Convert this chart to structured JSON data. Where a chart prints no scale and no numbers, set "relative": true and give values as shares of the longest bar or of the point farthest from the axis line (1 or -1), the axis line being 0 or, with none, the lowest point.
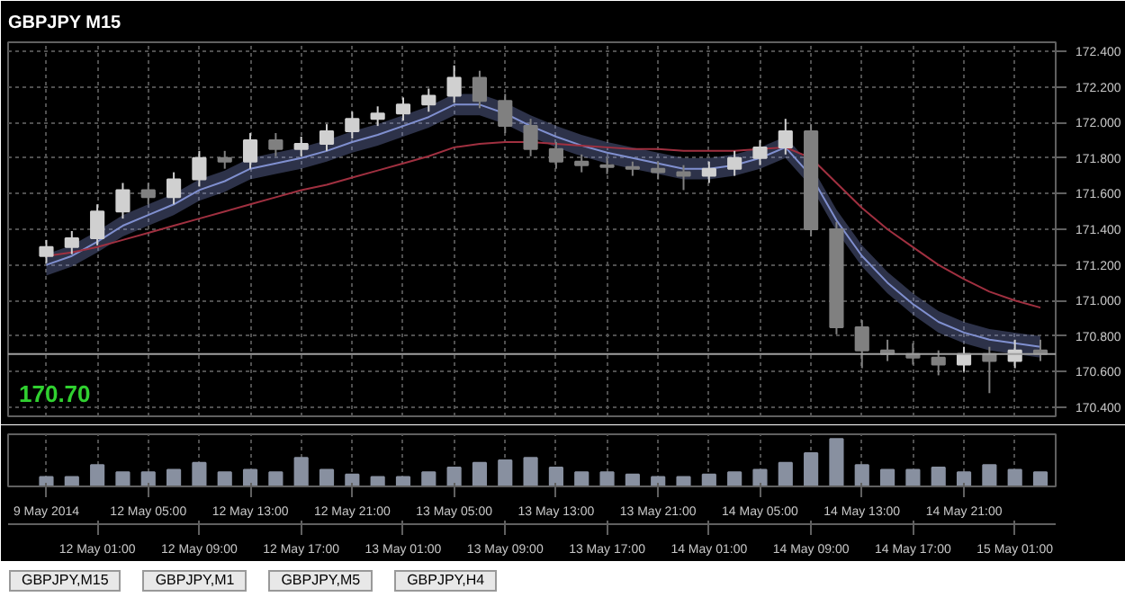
{
  "chart_data": [
    {
      "type": "candlestick",
      "title": "GBPJPY  M15",
      "annotations": [
        "170.70"
      ],
      "categories": [
        null,
        null,
        null,
        null,
        null,
        null,
        null,
        null,
        null,
        null,
        null,
        null,
        null,
        null,
        null,
        null,
        null,
        null,
        null,
        null,
        null,
        null,
        null,
        null,
        null,
        null,
        null,
        null,
        null,
        null,
        null,
        null,
        null,
        null,
        null,
        null,
        null,
        null,
        null,
        null
      ],
      "ohlc": [
        [
          171.25,
          171.34,
          171.21,
          171.3
        ],
        [
          171.3,
          171.39,
          171.26,
          171.35
        ],
        [
          171.35,
          171.54,
          171.31,
          171.5
        ],
        [
          171.5,
          171.66,
          171.46,
          171.62
        ],
        [
          171.62,
          171.66,
          171.54,
          171.58
        ],
        [
          171.58,
          171.72,
          171.54,
          171.68
        ],
        [
          171.68,
          171.84,
          171.64,
          171.8
        ],
        [
          171.8,
          171.84,
          171.74,
          171.78
        ],
        [
          171.78,
          171.94,
          171.74,
          171.9
        ],
        [
          171.9,
          171.94,
          171.81,
          171.85
        ],
        [
          171.85,
          171.92,
          171.81,
          171.88
        ],
        [
          171.88,
          171.99,
          171.84,
          171.95
        ],
        [
          171.95,
          172.06,
          171.91,
          172.02
        ],
        [
          172.02,
          172.09,
          171.98,
          172.05
        ],
        [
          172.05,
          172.14,
          172.01,
          172.1
        ],
        [
          172.1,
          172.19,
          172.06,
          172.15
        ],
        [
          172.15,
          172.32,
          172.11,
          172.25
        ],
        [
          172.25,
          172.29,
          172.08,
          172.12
        ],
        [
          172.12,
          172.16,
          171.94,
          171.98
        ],
        [
          171.98,
          172.02,
          171.81,
          171.85
        ],
        [
          171.85,
          171.89,
          171.74,
          171.78
        ],
        [
          171.78,
          171.82,
          171.72,
          171.76
        ],
        [
          171.76,
          171.8,
          171.71,
          171.75
        ],
        [
          171.75,
          171.78,
          171.7,
          171.74
        ],
        [
          171.74,
          171.78,
          171.68,
          171.72
        ],
        [
          171.72,
          171.76,
          171.62,
          171.7
        ],
        [
          171.7,
          171.78,
          171.66,
          171.74
        ],
        [
          171.74,
          171.84,
          171.7,
          171.8
        ],
        [
          171.8,
          171.9,
          171.76,
          171.86
        ],
        [
          171.86,
          172.02,
          171.82,
          171.95
        ],
        [
          171.95,
          171.99,
          171.36,
          171.4
        ],
        [
          171.4,
          171.44,
          170.81,
          170.85
        ],
        [
          170.85,
          170.89,
          170.62,
          170.72
        ],
        [
          170.72,
          170.78,
          170.66,
          170.7
        ],
        [
          170.7,
          170.76,
          170.64,
          170.68
        ],
        [
          170.68,
          170.72,
          170.58,
          170.64
        ],
        [
          170.64,
          170.74,
          170.6,
          170.7
        ],
        [
          170.7,
          170.74,
          170.48,
          170.66
        ],
        [
          170.66,
          170.78,
          170.62,
          170.72
        ],
        [
          170.72,
          170.78,
          170.66,
          170.7
        ]
      ],
      "colors": [
        "#d0d0d0",
        "#d0d0d0",
        "#d0d0d0",
        "#d0d0d0",
        "#808080",
        "#d0d0d0",
        "#d0d0d0",
        "#808080",
        "#d0d0d0",
        "#808080",
        "#d0d0d0",
        "#d0d0d0",
        "#d0d0d0",
        "#d0d0d0",
        "#d0d0d0",
        "#d0d0d0",
        "#d0d0d0",
        "#808080",
        "#808080",
        "#808080",
        "#808080",
        "#808080",
        "#808080",
        "#808080",
        "#808080",
        "#808080",
        "#d0d0d0",
        "#d0d0d0",
        "#d0d0d0",
        "#d0d0d0",
        "#808080",
        "#808080",
        "#808080",
        "#808080",
        "#808080",
        "#808080",
        "#d0d0d0",
        "#808080",
        "#d0d0d0",
        "#808080"
      ],
      "series": [
        {
          "type": "line",
          "color": "#8090d0",
          "values": [
            171.2,
            171.25,
            171.33,
            171.42,
            171.48,
            171.54,
            171.62,
            171.67,
            171.74,
            171.77,
            171.8,
            171.84,
            171.89,
            171.93,
            171.98,
            172.03,
            172.1,
            172.1,
            172.05,
            171.98,
            171.92,
            171.87,
            171.83,
            171.8,
            171.77,
            171.74,
            171.74,
            171.76,
            171.8,
            171.86,
            171.7,
            171.45,
            171.25,
            171.1,
            170.98,
            170.88,
            170.82,
            170.78,
            170.76,
            170.74
          ],
          "lower": [
            171.14,
            171.19,
            171.27,
            171.36,
            171.42,
            171.48,
            171.56,
            171.61,
            171.68,
            171.71,
            171.74,
            171.78,
            171.83,
            171.87,
            171.92,
            171.97,
            172.04,
            172.04,
            171.99,
            171.92,
            171.86,
            171.81,
            171.77,
            171.74,
            171.71,
            171.68,
            171.68,
            171.7,
            171.74,
            171.8,
            171.64,
            171.39,
            171.19,
            171.04,
            170.92,
            170.82,
            170.76,
            170.72,
            170.7,
            170.68
          ],
          "upper": [
            171.26,
            171.31,
            171.39,
            171.48,
            171.54,
            171.6,
            171.68,
            171.73,
            171.8,
            171.83,
            171.86,
            171.9,
            171.95,
            171.99,
            172.04,
            172.09,
            172.16,
            172.16,
            172.11,
            172.04,
            171.98,
            171.93,
            171.89,
            171.86,
            171.83,
            171.8,
            171.8,
            171.82,
            171.86,
            171.92,
            171.76,
            171.51,
            171.31,
            171.16,
            171.04,
            170.94,
            170.88,
            170.84,
            170.82,
            170.8
          ]
        },
        {
          "type": "line",
          "color": "#a03040",
          "values": [
            171.25,
            171.27,
            171.3,
            171.34,
            171.38,
            171.42,
            171.46,
            171.5,
            171.54,
            171.58,
            171.62,
            171.65,
            171.69,
            171.73,
            171.77,
            171.81,
            171.86,
            171.88,
            171.89,
            171.89,
            171.88,
            171.87,
            171.86,
            171.85,
            171.85,
            171.84,
            171.84,
            171.84,
            171.85,
            171.86,
            171.8,
            171.66,
            171.52,
            171.4,
            171.3,
            171.2,
            171.12,
            171.05,
            171.0,
            170.96
          ]
        }
      ],
      "ref_lines": [
        {
          "axis": "y",
          "value": 170.7,
          "color": "#a0a0a0"
        }
      ],
      "ylim": [
        170.35,
        172.45
      ],
      "yticks": [
        {
          "value": 170.4,
          "label": "170.400"
        },
        {
          "value": 170.6,
          "label": "170.600"
        },
        {
          "value": 170.8,
          "label": "170.800"
        },
        {
          "value": 171.0,
          "label": "171.000"
        },
        {
          "value": 171.2,
          "label": "171.200"
        },
        {
          "value": 171.4,
          "label": "171.400"
        },
        {
          "value": 171.6,
          "label": "171.600"
        },
        {
          "value": 171.8,
          "label": "171.800"
        },
        {
          "value": 172.0,
          "label": "172.000"
        },
        {
          "value": 172.2,
          "label": "172.200"
        },
        {
          "value": 172.4,
          "label": "172.400"
        }
      ],
      "grid": true,
      "tick_labels": "y"
    },
    {
      "type": "bar",
      "relative": true,
      "color": "#8890a0",
      "categories": [
        "9 May 2014",
        null,
        "12 May 01:00",
        null,
        "12 May 05:00",
        null,
        "12 May 09:00",
        null,
        "12 May 13:00",
        null,
        "12 May 17:00",
        null,
        "12 May 21:00",
        null,
        "13 May 01:00",
        null,
        "13 May 05:00",
        null,
        "13 May 09:00",
        null,
        "13 May 13:00",
        null,
        "13 May 17:00",
        null,
        "13 May 21:00",
        null,
        "14 May 01:00",
        null,
        "14 May 05:00",
        null,
        "14 May 09:00",
        null,
        "14 May 13:00",
        null,
        "14 May 17:00",
        null,
        "14 May 21:00",
        null,
        "15 May 01:00",
        null
      ],
      "values": [
        0.2,
        0.2,
        0.45,
        0.3,
        0.3,
        0.35,
        0.5,
        0.3,
        0.35,
        0.3,
        0.6,
        0.35,
        0.25,
        0.2,
        0.2,
        0.3,
        0.4,
        0.5,
        0.55,
        0.6,
        0.4,
        0.3,
        0.3,
        0.25,
        0.2,
        0.2,
        0.25,
        0.3,
        0.35,
        0.5,
        0.7,
        1.0,
        0.45,
        0.35,
        0.35,
        0.4,
        0.3,
        0.45,
        0.35,
        0.3
      ],
      "annotations": [
        "GBPJPY,M15",
        "GBPJPY,M1",
        "GBPJPY,M5",
        "GBPJPY,H4"
      ],
      "tick_labels": "x",
      "grid": "x"
    }
  ]
}
